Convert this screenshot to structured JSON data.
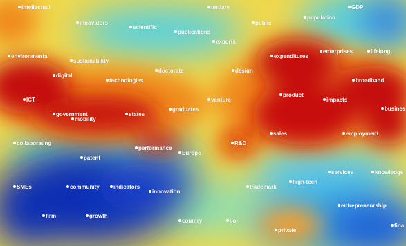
{
  "colors": {
    "low": "#0a2fb4",
    "mid_low": "#4fd0e8",
    "mid": "#f2e040",
    "mid_high": "#f08a1a",
    "high": "#c40a08",
    "label": "#ffffff"
  },
  "terms": [
    {
      "id": "intellectual",
      "label": "intellectual",
      "density": "high"
    },
    {
      "id": "tertiary",
      "label": "tertiary",
      "density": "mid"
    },
    {
      "id": "gdp",
      "label": "GDP",
      "density": "mid_low"
    },
    {
      "id": "innovators",
      "label": "innovators",
      "density": "mid"
    },
    {
      "id": "scientific",
      "label": "scientific",
      "density": "mid_low"
    },
    {
      "id": "public",
      "label": "public",
      "density": "high"
    },
    {
      "id": "population",
      "label": "population",
      "density": "mid_low"
    },
    {
      "id": "publications",
      "label": "publications",
      "density": "mid_low"
    },
    {
      "id": "exports",
      "label": "exports",
      "density": "mid"
    },
    {
      "id": "environmental",
      "label": "environmental",
      "density": "high"
    },
    {
      "id": "expenditures",
      "label": "expenditures",
      "density": "high"
    },
    {
      "id": "enterprises",
      "label": "enterprises",
      "density": "mid"
    },
    {
      "id": "lifelong",
      "label": "lifelong",
      "density": "high"
    },
    {
      "id": "sustainability",
      "label": "sustainability",
      "density": "high"
    },
    {
      "id": "doctorate",
      "label": "doctorate",
      "density": "mid"
    },
    {
      "id": "design",
      "label": "design",
      "density": "mid"
    },
    {
      "id": "digital",
      "label": "digital",
      "density": "high"
    },
    {
      "id": "technologies",
      "label": "technologies",
      "density": "high"
    },
    {
      "id": "broadband",
      "label": "broadband",
      "density": "high"
    },
    {
      "id": "ict",
      "label": "ICT",
      "density": "high"
    },
    {
      "id": "product",
      "label": "product",
      "density": "high"
    },
    {
      "id": "venture",
      "label": "venture",
      "density": "mid"
    },
    {
      "id": "impacts",
      "label": "impacts",
      "density": "high"
    },
    {
      "id": "business",
      "label": "business",
      "density": "high"
    },
    {
      "id": "graduates",
      "label": "graduates",
      "density": "mid"
    },
    {
      "id": "government",
      "label": "government",
      "density": "high"
    },
    {
      "id": "mobility",
      "label": "mobility",
      "density": "high"
    },
    {
      "id": "states",
      "label": "states",
      "density": "high"
    },
    {
      "id": "sales",
      "label": "sales",
      "density": "high"
    },
    {
      "id": "employment",
      "label": "employment",
      "density": "high"
    },
    {
      "id": "collaborating",
      "label": "collaborating",
      "density": "mid"
    },
    {
      "id": "rnd",
      "label": "R&D",
      "density": "high"
    },
    {
      "id": "performance",
      "label": "performance",
      "density": "high"
    },
    {
      "id": "europe",
      "label": "Europe",
      "density": "mid"
    },
    {
      "id": "patent",
      "label": "patent",
      "density": "low"
    },
    {
      "id": "services",
      "label": "services",
      "density": "mid_low"
    },
    {
      "id": "knowledge",
      "label": "knowledge",
      "density": "mid_low"
    },
    {
      "id": "high_tech",
      "label": "high-tech",
      "density": "mid_low"
    },
    {
      "id": "smes",
      "label": "SMEs",
      "density": "low"
    },
    {
      "id": "community",
      "label": "community",
      "density": "low"
    },
    {
      "id": "indicators",
      "label": "indicators",
      "density": "low"
    },
    {
      "id": "innovation",
      "label": "innovation",
      "density": "low"
    },
    {
      "id": "trademark",
      "label": "trademark",
      "density": "mid"
    },
    {
      "id": "entrepreneurship",
      "label": "entrepreneurship",
      "density": "mid_low"
    },
    {
      "id": "firm",
      "label": "firm",
      "density": "low"
    },
    {
      "id": "growth",
      "label": "growth",
      "density": "low"
    },
    {
      "id": "country",
      "label": "country",
      "density": "mid"
    },
    {
      "id": "co",
      "label": "co-",
      "density": "mid"
    },
    {
      "id": "private",
      "label": "private",
      "density": "mid_high"
    },
    {
      "id": "finance",
      "label": "fina",
      "density": "mid_low"
    }
  ]
}
